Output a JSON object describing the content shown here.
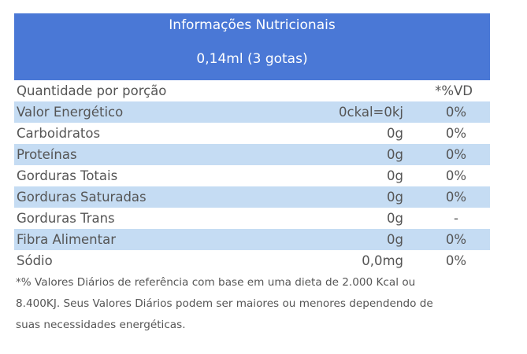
{
  "header": {
    "title": "Informações Nutricionais",
    "subtitle": "0,14ml (3 gotas)"
  },
  "columns": {
    "portion": "Quantidade por porção",
    "vd": "*%VD"
  },
  "rows": [
    {
      "name": "Valor Energético",
      "qty": "0ckal=0kj",
      "vd": "0%"
    },
    {
      "name": "Carboidratos",
      "qty": "0g",
      "vd": "0%"
    },
    {
      "name": "Proteínas",
      "qty": "0g",
      "vd": "0%"
    },
    {
      "name": "Gorduras Totais",
      "qty": "0g",
      "vd": "0%"
    },
    {
      "name": "Gorduras Saturadas",
      "qty": "0g",
      "vd": "0%"
    },
    {
      "name": "Gorduras Trans",
      "qty": "0g",
      "vd": "-"
    },
    {
      "name": "Fibra Alimentar",
      "qty": "0g",
      "vd": "0%"
    },
    {
      "name": "Sódio",
      "qty": "0,0mg",
      "vd": "0%"
    }
  ],
  "footnote": {
    "line1": "*% Valores Diários de referência com base em uma dieta de 2.000 Kcal ou",
    "line2": "8.400KJ. Seus Valores Diários podem ser maiores ou menores dependendo de",
    "line3": "suas necessidades energéticas."
  },
  "colors": {
    "header_bg": "#4a78d6",
    "stripe_bg": "#c5dcf3"
  }
}
